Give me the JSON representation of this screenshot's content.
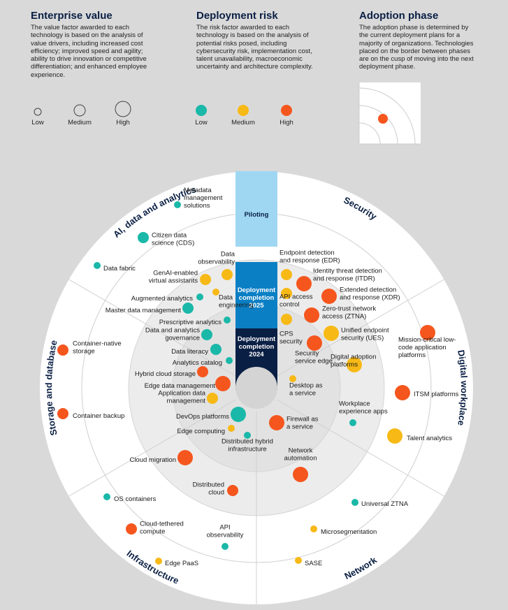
{
  "legend": {
    "value": {
      "title": "Enterprise value",
      "desc": "The value factor awarded to each technology is based on the analysis of value drivers, including increased cost efficiency; improved speed and agility; ability to drive innovation or competitive differentiation; and enhanced employee experience.",
      "levels": [
        "Low",
        "Medium",
        "High"
      ]
    },
    "risk": {
      "title": "Deployment risk",
      "desc": "The risk factor awarded to each technology is based on the analysis of potential risks posed, including cybersecurity risk, implementation cost, talent unavailability, macroeconomic uncertainty and architecture complexity.",
      "levels": [
        "Low",
        "Medium",
        "High"
      ]
    },
    "phase": {
      "title": "Adoption phase",
      "desc": "The adoption phase is determined by the current deployment plans for a majority of organizations. Technologies placed on the border between phases are on the cusp of moving into the next deployment phase."
    }
  },
  "colors": {
    "low": "#1ab8a8",
    "medium": "#f7b916",
    "high": "#f5561e",
    "navy": "#0a1f44",
    "piloting": "#9fd7f2",
    "mid_blue": "#0b7fc4"
  },
  "phases": [
    "Piloting",
    "Deployment completion 2025",
    "Deployment completion 2024"
  ],
  "segments": [
    "AI, data and analytics",
    "Security",
    "Digital workplace",
    "Network",
    "Infrastructure",
    "Storage and database"
  ],
  "technologies": [
    {
      "name": "Metadata management solutions",
      "risk": "low",
      "value": "low"
    },
    {
      "name": "Citizen data science (CDS)",
      "risk": "low",
      "value": "medium"
    },
    {
      "name": "Data fabric",
      "risk": "low",
      "value": "low"
    },
    {
      "name": "Data observability",
      "risk": "medium",
      "value": "medium"
    },
    {
      "name": "GenAI-enabled virtual assistants",
      "risk": "medium",
      "value": "medium"
    },
    {
      "name": "Augmented analytics",
      "risk": "low",
      "value": "low"
    },
    {
      "name": "Data engineering",
      "risk": "medium",
      "value": "low"
    },
    {
      "name": "Master data management",
      "risk": "low",
      "value": "medium"
    },
    {
      "name": "Prescriptive analytics",
      "risk": "low",
      "value": "low"
    },
    {
      "name": "Data and analytics governance",
      "risk": "low",
      "value": "medium"
    },
    {
      "name": "Data literacy",
      "risk": "low",
      "value": "medium"
    },
    {
      "name": "Analytics catalog",
      "risk": "low",
      "value": "low"
    },
    {
      "name": "Hybrid cloud storage",
      "risk": "high",
      "value": "medium"
    },
    {
      "name": "Edge data management",
      "risk": "high",
      "value": "high"
    },
    {
      "name": "Application data management",
      "risk": "medium",
      "value": "medium"
    },
    {
      "name": "DevOps platforms",
      "risk": "low",
      "value": "high"
    },
    {
      "name": "Edge computing",
      "risk": "medium",
      "value": "low"
    },
    {
      "name": "Distributed hybrid infrastructure",
      "risk": "low",
      "value": "low"
    },
    {
      "name": "Endpoint detection and response (EDR)",
      "risk": "medium",
      "value": "medium"
    },
    {
      "name": "Identity threat detection and response (ITDR)",
      "risk": "high",
      "value": "high"
    },
    {
      "name": "Extended detection and response (XDR)",
      "risk": "high",
      "value": "high"
    },
    {
      "name": "API access control",
      "risk": "medium",
      "value": "medium"
    },
    {
      "name": "Zero-trust network access (ZTNA)",
      "risk": "high",
      "value": "high"
    },
    {
      "name": "Unified endpoint security (UES)",
      "risk": "medium",
      "value": "high"
    },
    {
      "name": "CPS security",
      "risk": "medium",
      "value": "medium"
    },
    {
      "name": "Security service edge",
      "risk": "high",
      "value": "high"
    },
    {
      "name": "Digital adoption platforms",
      "risk": "medium",
      "value": "high"
    },
    {
      "name": "Desktop as a service",
      "risk": "medium",
      "value": "low"
    },
    {
      "name": "Workplace experience apps",
      "risk": "low",
      "value": "low"
    },
    {
      "name": "Mission-critical low-code application platforms",
      "risk": "high",
      "value": "high"
    },
    {
      "name": "ITSM platforms",
      "risk": "high",
      "value": "high"
    },
    {
      "name": "Talent analytics",
      "risk": "medium",
      "value": "high"
    },
    {
      "name": "Firewall as a service",
      "risk": "high",
      "value": "high"
    },
    {
      "name": "Network automation",
      "risk": "high",
      "value": "high"
    },
    {
      "name": "Universal ZTNA",
      "risk": "low",
      "value": "low"
    },
    {
      "name": "Microsegmentation",
      "risk": "medium",
      "value": "low"
    },
    {
      "name": "SASE",
      "risk": "medium",
      "value": "low"
    },
    {
      "name": "Cloud migration",
      "risk": "high",
      "value": "high"
    },
    {
      "name": "Distributed cloud",
      "risk": "high",
      "value": "medium"
    },
    {
      "name": "OS containers",
      "risk": "low",
      "value": "low"
    },
    {
      "name": "Cloud-tethered compute",
      "risk": "high",
      "value": "medium"
    },
    {
      "name": "API observability",
      "risk": "low",
      "value": "low"
    },
    {
      "name": "Edge PaaS",
      "risk": "medium",
      "value": "low"
    },
    {
      "name": "Container-native storage",
      "risk": "high",
      "value": "medium"
    },
    {
      "name": "Container backup",
      "risk": "high",
      "value": "medium"
    }
  ]
}
